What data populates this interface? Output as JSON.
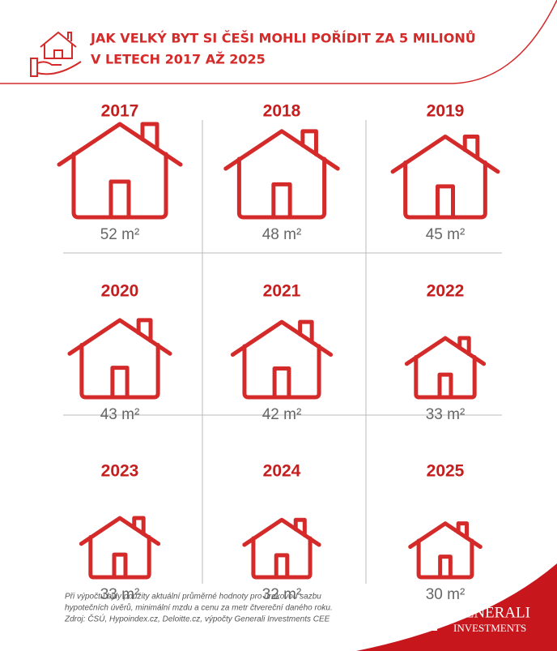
{
  "chart_data": {
    "type": "pictogram",
    "title_lines": [
      "JAK VELKÝ BYT SI ČEŠI MOHLI POŘÍDIT ZA 5 MILIONŮ",
      "V LETECH 2017 AŽ 2025"
    ],
    "categories": [
      "2017",
      "2018",
      "2019",
      "2020",
      "2021",
      "2022",
      "2023",
      "2024",
      "2025"
    ],
    "values": [
      52,
      48,
      45,
      43,
      42,
      33,
      33,
      32,
      30
    ],
    "value_labels": [
      "52 m²",
      "48 m²",
      "45 m²",
      "43 m²",
      "42 m²",
      "33 m²",
      "33 m²",
      "32 m²",
      "30 m²"
    ],
    "color": "#d42a2a",
    "footnote": [
      "Při výpočtu byly použity aktuální průměrné hodnoty pro úrokovou sazbu",
      "hypotečních úvěrů, minimální mzdu a cenu za metr čtvereční daného roku.",
      "Zdroj: ČSÚ, Hypoindex.cz, Deloitte.cz, výpočty Generali Investments CEE"
    ],
    "brand": [
      "GENERALI",
      "INVESTMENTS"
    ]
  }
}
